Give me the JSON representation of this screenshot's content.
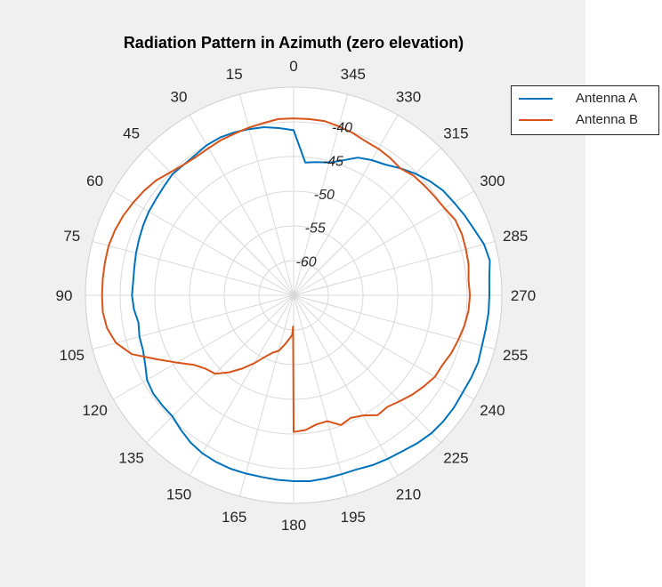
{
  "figure": {
    "background": "#f0f0f0",
    "axes_background": "#ffffff",
    "grid_color": "#d9d9d9",
    "text_color": "#262626"
  },
  "chart_data": {
    "type": "line",
    "coordinate_system": "polar",
    "title": "Radiation Pattern in Azimuth (zero elevation)",
    "theta_zero_location": "top",
    "theta_direction": "counterclockwise",
    "theta_ticks": [
      0,
      15,
      30,
      45,
      60,
      75,
      90,
      105,
      120,
      135,
      150,
      165,
      180,
      195,
      210,
      225,
      240,
      255,
      270,
      285,
      300,
      315,
      330,
      345
    ],
    "theta_tick_labels": [
      "0",
      "15",
      "30",
      "45",
      "60",
      "75",
      "90",
      "105",
      "120",
      "135",
      "150",
      "165",
      "180",
      "195",
      "210",
      "225",
      "240",
      "255",
      "270",
      "285",
      "300",
      "315",
      "330",
      "345"
    ],
    "r_lim": [
      -65,
      -35
    ],
    "r_ticks": [
      -60,
      -55,
      -50,
      -45,
      -40
    ],
    "r_tick_labels": [
      "-60",
      "-55",
      "-50",
      "-45",
      "-40"
    ],
    "r_tick_label_angle": 345,
    "grid": true,
    "legend_position": "outside-top-right",
    "series": [
      {
        "name": "Antenna A",
        "color": "#0072bd",
        "theta": [
          0,
          5,
          10,
          15,
          20,
          25,
          30,
          35,
          40,
          45,
          50,
          55,
          60,
          65,
          70,
          75,
          80,
          85,
          90,
          95,
          100,
          105,
          110,
          115,
          120,
          125,
          130,
          135,
          140,
          145,
          150,
          155,
          160,
          165,
          170,
          175,
          180,
          185,
          190,
          195,
          200,
          205,
          210,
          215,
          220,
          225,
          230,
          235,
          240,
          245,
          250,
          255,
          260,
          265,
          270,
          275,
          280,
          285,
          290,
          295,
          300,
          305,
          310,
          315,
          320,
          325,
          330,
          335,
          340,
          345,
          350,
          355
        ],
        "r": [
          -41.2,
          -40.8,
          -40.4,
          -40.2,
          -40.0,
          -39.9,
          -40.0,
          -40.3,
          -40.4,
          -40.3,
          -40.6,
          -40.8,
          -40.9,
          -41.1,
          -41.3,
          -41.5,
          -41.7,
          -41.8,
          -41.7,
          -41.9,
          -42.3,
          -42.0,
          -41.9,
          -41.4,
          -40.6,
          -40.3,
          -40.3,
          -40.3,
          -39.7,
          -39.1,
          -38.7,
          -38.5,
          -38.4,
          -38.4,
          -38.4,
          -38.3,
          -38.2,
          -38.1,
          -38.2,
          -38.3,
          -38.3,
          -38.0,
          -37.8,
          -37.6,
          -37.2,
          -36.9,
          -36.8,
          -36.8,
          -36.9,
          -36.8,
          -36.7,
          -36.9,
          -36.9,
          -36.8,
          -36.8,
          -36.7,
          -36.3,
          -36.6,
          -37.3,
          -37.8,
          -38.3,
          -38.7,
          -39.4,
          -40.2,
          -41.1,
          -42.0,
          -42.5,
          -43.1,
          -44.3,
          -45.2,
          -45.5,
          -45.8
        ]
      },
      {
        "name": "Antenna B",
        "color": "#d95319",
        "theta": [
          0,
          5,
          10,
          15,
          20,
          25,
          30,
          35,
          40,
          45,
          50,
          55,
          60,
          65,
          70,
          75,
          80,
          85,
          90,
          95,
          100,
          105,
          110,
          115,
          120,
          125,
          130,
          135,
          140,
          145,
          150,
          155,
          160,
          165,
          170,
          175,
          178,
          179,
          180,
          185,
          190,
          195,
          200,
          205,
          210,
          215,
          220,
          225,
          230,
          235,
          240,
          245,
          250,
          255,
          260,
          265,
          270,
          275,
          280,
          285,
          290,
          295,
          300,
          305,
          310,
          315,
          320,
          325,
          330,
          335,
          340,
          345,
          350,
          355
        ],
        "r": [
          -39.5,
          -39.5,
          -39.8,
          -40.0,
          -40.2,
          -40.3,
          -40.5,
          -40.6,
          -40.4,
          -39.9,
          -39.2,
          -38.7,
          -38.3,
          -37.9,
          -37.6,
          -37.4,
          -37.4,
          -37.4,
          -37.4,
          -37.4,
          -37.7,
          -38.5,
          -40.2,
          -43.2,
          -45.6,
          -47.5,
          -48.5,
          -49.0,
          -50.5,
          -52.1,
          -53.7,
          -55.2,
          -56.2,
          -56.7,
          -57.8,
          -58.8,
          -59.3,
          -60.5,
          -45.3,
          -45.5,
          -46.1,
          -46.2,
          -45.1,
          -45.5,
          -45.0,
          -43.9,
          -44.0,
          -43.4,
          -42.7,
          -42.1,
          -41.5,
          -41.3,
          -40.8,
          -40.4,
          -40.0,
          -39.7,
          -39.6,
          -39.7,
          -39.4,
          -39.3,
          -39.2,
          -39.3,
          -39.9,
          -40.2,
          -40.4,
          -40.6,
          -41.1,
          -40.8,
          -40.6,
          -40.5,
          -40.1,
          -39.8,
          -39.5,
          -39.5
        ]
      }
    ]
  }
}
